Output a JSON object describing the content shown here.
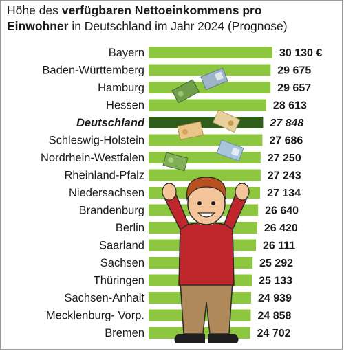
{
  "title": {
    "part1": "Höhe des ",
    "bold1": "verfügbaren Nettoeinkommens pro",
    "bold2": "Einwohner",
    "part2": " in Deutschland im Jahr 2024 (Prognose)"
  },
  "colors": {
    "bar": "#8dc63f",
    "bar_highlight": "#2f5e1c",
    "shirt": "#c0272d",
    "pants": "#b0895a",
    "skin": "#f4c49a",
    "hair": "#b8501f"
  },
  "illustration": {
    "description_icons": [
      "banknote-icon",
      "person-cheering-icon"
    ]
  },
  "chart_data": {
    "type": "bar",
    "orientation": "horizontal",
    "categories": [
      "Bayern",
      "Baden-Württemberg",
      "Hamburg",
      "Hessen",
      "Deutschland",
      "Schleswig-Holstein",
      "Nordrhein-Westfalen",
      "Rheinland-Pfalz",
      "Niedersachsen",
      "Brandenburg",
      "Berlin",
      "Saarland",
      "Sachsen",
      "Thüringen",
      "Sachsen-Anhalt",
      "Mecklenburg- Vorp.",
      "Bremen"
    ],
    "values": [
      30130,
      29675,
      29657,
      28613,
      27848,
      27686,
      27250,
      27243,
      27134,
      26640,
      26420,
      26111,
      25292,
      25133,
      24939,
      24858,
      24702
    ],
    "value_labels": [
      "30 130 €",
      "29 675",
      "29 657",
      "28 613",
      "27 848",
      "27 686",
      "27 250",
      "27 243",
      "27 134",
      "26 640",
      "26 420",
      "26 111",
      "25 292",
      "25 133",
      "24 939",
      "24 858",
      "24 702"
    ],
    "highlight": "Deutschland",
    "xlim": [
      0,
      30130
    ],
    "grid": false,
    "legend": "none"
  }
}
